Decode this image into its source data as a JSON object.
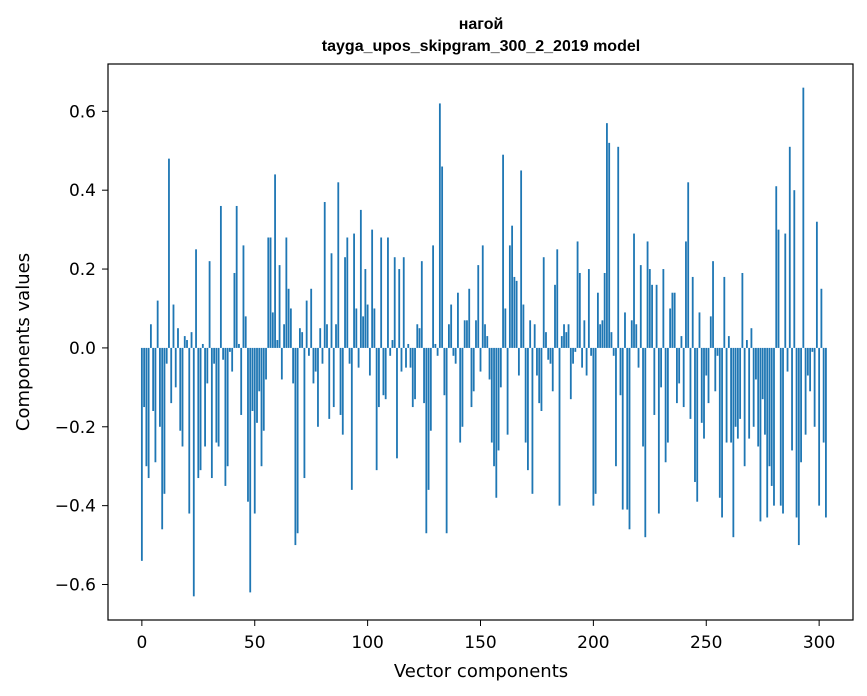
{
  "chart_data": {
    "type": "bar",
    "title": "нагой",
    "subtitle": "tayga_upos_skipgram_300_2_2019 model",
    "xlabel": "Vector components",
    "ylabel": "Components values",
    "xlim": [
      -15,
      315
    ],
    "ylim": [
      -0.69,
      0.72
    ],
    "xticks": [
      0,
      50,
      100,
      150,
      200,
      250,
      300
    ],
    "yticks": [
      -0.6,
      -0.4,
      -0.2,
      0.0,
      0.2,
      0.4,
      0.6
    ],
    "ytick_labels": [
      "−0.6",
      "−0.4",
      "−0.2",
      "0.0",
      "0.2",
      "0.4",
      "0.6"
    ],
    "bar_color": "#1f77b4",
    "grid": false,
    "values": [
      -0.54,
      -0.15,
      -0.3,
      -0.33,
      0.06,
      -0.16,
      -0.29,
      0.12,
      -0.2,
      -0.46,
      -0.37,
      -0.04,
      0.48,
      -0.14,
      0.11,
      -0.1,
      0.05,
      -0.21,
      -0.25,
      0.03,
      0.02,
      -0.42,
      0.04,
      -0.63,
      0.25,
      -0.33,
      -0.31,
      0.01,
      -0.25,
      -0.09,
      0.22,
      -0.33,
      -0.04,
      -0.24,
      -0.25,
      0.36,
      -0.03,
      -0.35,
      -0.3,
      -0.01,
      -0.06,
      0.19,
      0.36,
      0.01,
      -0.17,
      0.26,
      0.08,
      -0.39,
      -0.62,
      -0.16,
      -0.42,
      -0.19,
      -0.11,
      -0.3,
      -0.21,
      -0.08,
      0.28,
      0.28,
      0.09,
      0.44,
      0.02,
      0.21,
      -0.08,
      0.06,
      0.28,
      0.15,
      0.1,
      -0.09,
      -0.5,
      -0.47,
      0.05,
      0.04,
      -0.33,
      0.12,
      -0.02,
      0.15,
      -0.09,
      -0.06,
      -0.2,
      0.05,
      -0.04,
      0.37,
      0.06,
      -0.18,
      0.24,
      -0.15,
      0.06,
      0.42,
      -0.17,
      -0.22,
      0.23,
      0.28,
      -0.04,
      -0.36,
      0.29,
      0.1,
      -0.05,
      0.35,
      0.08,
      0.2,
      0.11,
      -0.07,
      0.3,
      0.1,
      -0.31,
      -0.15,
      0.28,
      -0.12,
      -0.13,
      0.28,
      -0.02,
      0.02,
      0.23,
      -0.28,
      0.2,
      -0.06,
      0.23,
      -0.05,
      0.01,
      -0.05,
      -0.15,
      -0.13,
      0.06,
      0.05,
      0.22,
      -0.14,
      -0.47,
      -0.36,
      -0.21,
      0.26,
      0.01,
      -0.02,
      0.62,
      0.46,
      -0.12,
      -0.47,
      0.06,
      0.11,
      -0.02,
      -0.04,
      0.14,
      -0.24,
      -0.2,
      0.07,
      0.07,
      0.15,
      -0.15,
      -0.11,
      0.07,
      0.21,
      -0.06,
      0.26,
      0.06,
      0.03,
      -0.08,
      -0.24,
      -0.3,
      -0.38,
      -0.26,
      -0.1,
      0.49,
      0.1,
      -0.22,
      0.26,
      0.31,
      0.18,
      0.17,
      -0.07,
      0.45,
      0.11,
      -0.24,
      -0.31,
      0.07,
      -0.37,
      0.06,
      -0.07,
      -0.14,
      -0.16,
      0.23,
      0.04,
      -0.03,
      -0.04,
      -0.11,
      0.16,
      0.25,
      -0.4,
      0.03,
      0.06,
      0.04,
      0.06,
      -0.13,
      -0.04,
      -0.01,
      0.27,
      0.19,
      -0.05,
      0.07,
      -0.07,
      0.2,
      -0.02,
      -0.4,
      -0.37,
      0.14,
      0.06,
      0.07,
      0.19,
      0.57,
      0.52,
      0.04,
      -0.02,
      -0.3,
      0.51,
      -0.12,
      -0.41,
      0.09,
      -0.41,
      -0.46,
      0.07,
      0.29,
      0.06,
      -0.05,
      0.21,
      -0.25,
      -0.48,
      0.27,
      0.2,
      0.16,
      -0.17,
      0.16,
      -0.42,
      -0.1,
      0.2,
      -0.29,
      -0.24,
      0.1,
      0.14,
      0.14,
      -0.14,
      -0.09,
      0.03,
      -0.15,
      0.27,
      0.42,
      -0.18,
      0.18,
      -0.34,
      -0.39,
      0.09,
      -0.19,
      -0.23,
      -0.07,
      -0.14,
      0.08,
      0.22,
      -0.11,
      -0.02,
      -0.38,
      -0.43,
      0.18,
      -0.24,
      0.03,
      -0.24,
      -0.48,
      -0.2,
      -0.23,
      -0.18,
      0.19,
      -0.3,
      0.02,
      -0.23,
      0.05,
      -0.2,
      -0.08,
      -0.25,
      -0.44,
      -0.13,
      -0.22,
      -0.43,
      -0.3,
      -0.35,
      -0.4,
      0.41,
      0.3,
      -0.4,
      -0.42,
      0.29,
      -0.06,
      0.51,
      -0.26,
      0.4,
      -0.43,
      -0.5,
      -0.29,
      0.66,
      -0.22,
      -0.07,
      -0.11,
      -0.01,
      -0.2,
      0.32,
      -0.4,
      0.15,
      -0.24,
      -0.43
    ]
  }
}
